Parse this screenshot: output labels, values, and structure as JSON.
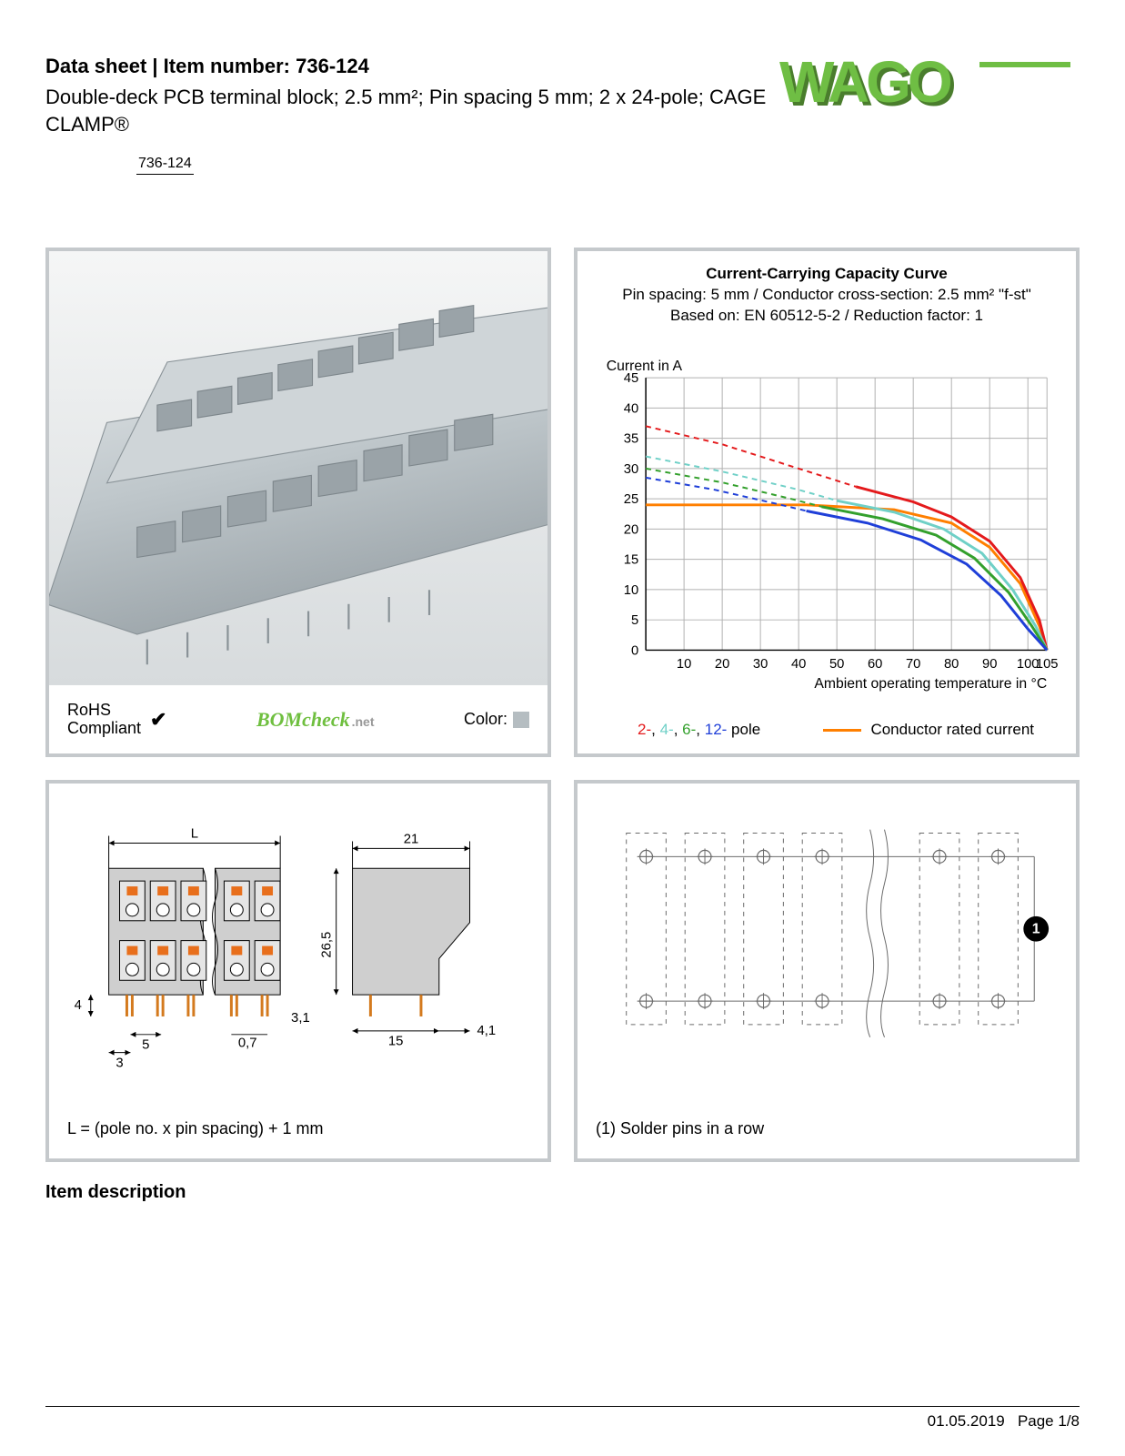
{
  "header": {
    "title_prefix": "Data sheet  |  Item number: ",
    "item_number": "736-124",
    "subtitle": "Double-deck PCB terminal block; 2.5 mm²; Pin spacing 5 mm; 2 x 24-pole; CAGE CLAMP®",
    "item_chip": "736-124"
  },
  "logo": {
    "text": "WAGO",
    "primary_color": "#6fbe44",
    "shadow_color": "#4a7d2d"
  },
  "photo_panel": {
    "rohs_line1": "RoHS",
    "rohs_line2": "Compliant",
    "check": "✔",
    "bomcheck": "BOMcheck",
    "bomcheck_suffix": ".net",
    "color_label": "Color:",
    "swatch_color": "#b5bdc1",
    "product_body_color": "#bfc7cb",
    "product_highlight": "#e2e6e8",
    "product_shadow": "#9aa3a8"
  },
  "chart_panel": {
    "title": "Current-Carrying Capacity Curve",
    "subtitle1": "Pin spacing: 5 mm / Conductor cross-section: 2.5 mm² \"f-st\"",
    "subtitle2": "Based on: EN 60512-5-2 / Reduction factor: 1",
    "y_axis_label": "Current in A",
    "x_axis_label": "Ambient operating temperature in °C",
    "ylim": [
      0,
      45
    ],
    "ytick_step": 5,
    "yticks": [
      0,
      5,
      10,
      15,
      20,
      25,
      30,
      35,
      40,
      45
    ],
    "xlim": [
      0,
      105
    ],
    "xticks": [
      10,
      20,
      30,
      40,
      50,
      60,
      70,
      80,
      90,
      100,
      105
    ],
    "grid_color": "#b0b0b0",
    "background_color": "#ffffff",
    "axis_color": "#000000",
    "line_width_dashed": 2,
    "line_width_solid": 3,
    "dash_pattern": "6,5",
    "fontsize_title": 17,
    "fontsize_axis": 16,
    "fontsize_tick": 15,
    "series": {
      "conductor": {
        "label": "Conductor rated current",
        "color": "#ff7f00",
        "dashed": false,
        "points": [
          [
            0,
            24
          ],
          [
            42,
            24
          ],
          [
            65,
            23.2
          ],
          [
            80,
            21
          ],
          [
            90,
            17
          ],
          [
            98,
            11
          ],
          [
            103,
            4
          ],
          [
            105,
            0
          ]
        ]
      },
      "p2": {
        "label": "2-",
        "color": "#e41a1c",
        "dashed": true,
        "points": [
          [
            0,
            37
          ],
          [
            20,
            34
          ],
          [
            40,
            30
          ],
          [
            55,
            27
          ]
        ],
        "solid_from": 55,
        "solid_points": [
          [
            55,
            27
          ],
          [
            70,
            24.5
          ],
          [
            80,
            22
          ],
          [
            90,
            18
          ],
          [
            98,
            12
          ],
          [
            103,
            5
          ],
          [
            105,
            0
          ]
        ]
      },
      "p4": {
        "label": "4-",
        "color": "#6fd0c7",
        "dashed": true,
        "points": [
          [
            0,
            32
          ],
          [
            20,
            29.5
          ],
          [
            40,
            26.5
          ],
          [
            50,
            24.7
          ]
        ],
        "solid_from": 50,
        "solid_points": [
          [
            50,
            24.7
          ],
          [
            65,
            22.8
          ],
          [
            78,
            20
          ],
          [
            88,
            16
          ],
          [
            96,
            10
          ],
          [
            102,
            4
          ],
          [
            105,
            0
          ]
        ]
      },
      "p6": {
        "label": "6-",
        "color": "#33a02c",
        "dashed": true,
        "points": [
          [
            0,
            30
          ],
          [
            20,
            27.7
          ],
          [
            38,
            25
          ],
          [
            46,
            23.7
          ]
        ],
        "solid_from": 46,
        "solid_points": [
          [
            46,
            23.7
          ],
          [
            62,
            21.7
          ],
          [
            76,
            19
          ],
          [
            86,
            15.2
          ],
          [
            95,
            9.5
          ],
          [
            101,
            4
          ],
          [
            105,
            0
          ]
        ]
      },
      "p12": {
        "label": "12-",
        "color": "#1f3fd8",
        "dashed": true,
        "points": [
          [
            0,
            28.5
          ],
          [
            18,
            26.5
          ],
          [
            34,
            24.2
          ],
          [
            42,
            23
          ]
        ],
        "solid_from": 42,
        "solid_points": [
          [
            42,
            23
          ],
          [
            58,
            21
          ],
          [
            72,
            18.2
          ],
          [
            84,
            14.2
          ],
          [
            93,
            9
          ],
          [
            100,
            3.5
          ],
          [
            105,
            0
          ]
        ]
      }
    },
    "legend_pole_suffix": " pole"
  },
  "dimension_panel": {
    "dims": {
      "L": "L",
      "width_side": "21",
      "height": "26,5",
      "pin_depth": "4",
      "pitch": "5",
      "first": "3",
      "pin_w": "0,7",
      "pin_total": "3,1",
      "base": "15",
      "side_off": "4,1"
    },
    "note": "L = (pole no. x pin spacing) + 1 mm",
    "body_fill": "#cfcfcf",
    "pin_color": "#d47a1e",
    "line_color": "#000000",
    "accent_color": "#e86f1c",
    "fontsize": 15
  },
  "schematic_panel": {
    "note": "(1) Solder pins in a row",
    "marker_label": "1",
    "line_color": "#6b6b6b",
    "dash": "5,5",
    "fontsize": 17
  },
  "section_title": "Item description",
  "footer": {
    "date": "01.05.2019",
    "page": "Page 1/8"
  }
}
